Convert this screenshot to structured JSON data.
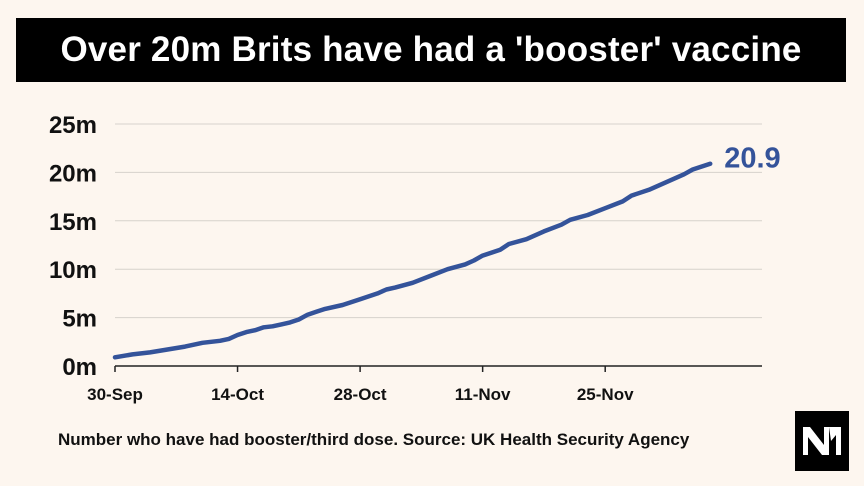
{
  "header": {
    "title": "Over 20m Brits have had a 'booster' vaccine"
  },
  "footer": {
    "source": "Number who have had booster/third dose. Source: UK Health Security Agency"
  },
  "colors": {
    "line": "#34539a",
    "grid": "#d6d2cc",
    "background": "#fdf6ef",
    "title_bg": "#000000"
  },
  "chart_data": {
    "type": "line",
    "title": "Over 20m Brits have had a 'booster' vaccine",
    "xlabel": "",
    "ylabel": "",
    "ylim": [
      0,
      25
    ],
    "grid": true,
    "y_ticks": [
      {
        "value": 0,
        "label": "0m"
      },
      {
        "value": 5,
        "label": "5m"
      },
      {
        "value": 10,
        "label": "10m"
      },
      {
        "value": 15,
        "label": "15m"
      },
      {
        "value": 20,
        "label": "20m"
      },
      {
        "value": 25,
        "label": "25m"
      }
    ],
    "x_ticks": [
      {
        "date": "30-Sep",
        "day": 0
      },
      {
        "date": "14-Oct",
        "day": 14
      },
      {
        "date": "28-Oct",
        "day": 28
      },
      {
        "date": "11-Nov",
        "day": 42
      },
      {
        "date": "25-Nov",
        "day": 56
      }
    ],
    "end_label": "20.9",
    "series": [
      {
        "name": "",
        "points": [
          [
            0,
            0.9
          ],
          [
            2,
            1.2
          ],
          [
            4,
            1.4
          ],
          [
            6,
            1.7
          ],
          [
            8,
            2.0
          ],
          [
            10,
            2.4
          ],
          [
            12,
            2.6
          ],
          [
            13,
            2.8
          ],
          [
            14,
            3.2
          ],
          [
            15,
            3.5
          ],
          [
            16,
            3.7
          ],
          [
            17,
            4.0
          ],
          [
            18,
            4.1
          ],
          [
            19,
            4.3
          ],
          [
            20,
            4.5
          ],
          [
            21,
            4.8
          ],
          [
            22,
            5.3
          ],
          [
            23,
            5.6
          ],
          [
            24,
            5.9
          ],
          [
            26,
            6.3
          ],
          [
            28,
            6.9
          ],
          [
            30,
            7.5
          ],
          [
            31,
            7.9
          ],
          [
            32,
            8.1
          ],
          [
            34,
            8.6
          ],
          [
            36,
            9.3
          ],
          [
            38,
            10.0
          ],
          [
            40,
            10.5
          ],
          [
            41,
            10.9
          ],
          [
            42,
            11.4
          ],
          [
            44,
            12.0
          ],
          [
            45,
            12.6
          ],
          [
            47,
            13.1
          ],
          [
            49,
            13.9
          ],
          [
            51,
            14.6
          ],
          [
            52,
            15.1
          ],
          [
            54,
            15.6
          ],
          [
            56,
            16.3
          ],
          [
            58,
            17.0
          ],
          [
            59,
            17.6
          ],
          [
            61,
            18.2
          ],
          [
            63,
            19.0
          ],
          [
            65,
            19.8
          ],
          [
            66,
            20.3
          ],
          [
            68,
            20.9
          ]
        ]
      }
    ]
  }
}
